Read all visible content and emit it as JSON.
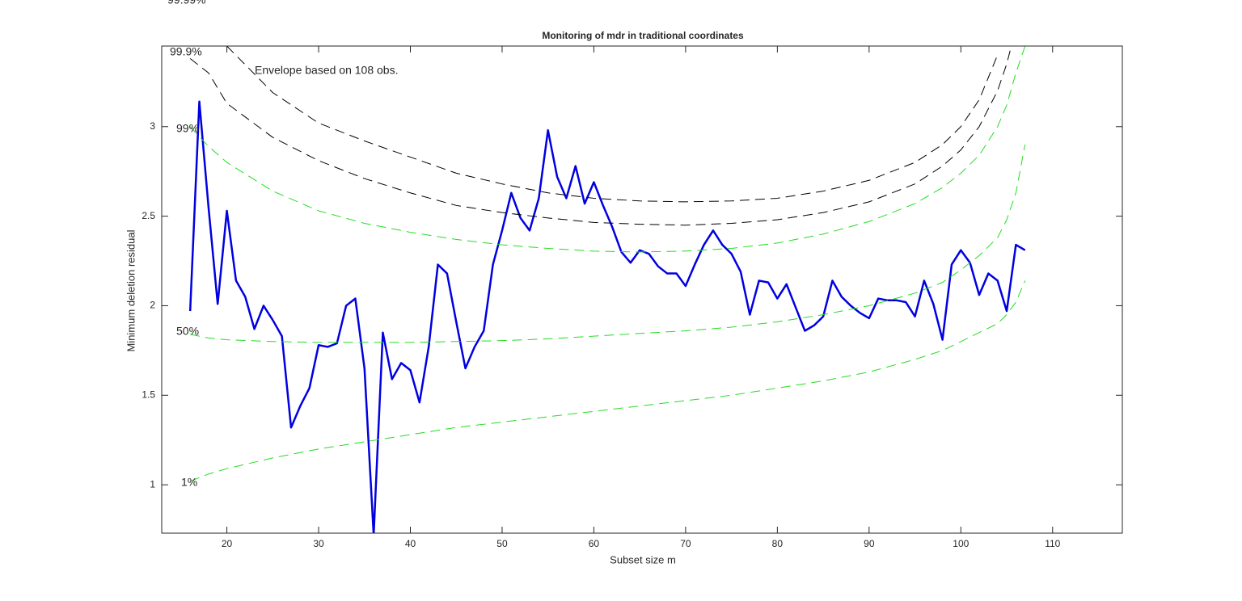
{
  "chart_data": {
    "type": "line",
    "title": "Monitoring of mdr in traditional coordinates",
    "x_label": "Subset size m",
    "y_label": "Minimum deletion residual",
    "annotations": [
      "Envelope based on 108 obs."
    ],
    "xlim": [
      12.9,
      117.6
    ],
    "ylim": [
      0.73,
      3.45
    ],
    "xticks": [
      20,
      30,
      40,
      50,
      60,
      70,
      80,
      90,
      100,
      110
    ],
    "yticks": [
      1,
      1.5,
      2,
      2.5,
      3
    ],
    "series": [
      {
        "color": "#0000e0",
        "dashed": false,
        "x": [
          16,
          17,
          18,
          19,
          20,
          21,
          22,
          23,
          24,
          25,
          26,
          27,
          28,
          29,
          30,
          31,
          32,
          33,
          34,
          35,
          36,
          37,
          38,
          39,
          40,
          41,
          42,
          43,
          44,
          45,
          46,
          47,
          48,
          49,
          50,
          51,
          52,
          53,
          54,
          55,
          56,
          57,
          58,
          59,
          60,
          61,
          62,
          63,
          64,
          65,
          66,
          67,
          68,
          69,
          70,
          71,
          72,
          73,
          74,
          75,
          76,
          77,
          78,
          79,
          80,
          81,
          82,
          83,
          84,
          85,
          86,
          87,
          88,
          89,
          90,
          91,
          92,
          93,
          94,
          95,
          96,
          97,
          98,
          99,
          100,
          101,
          102,
          103,
          104,
          105,
          106,
          107
        ],
        "values": [
          1.97,
          3.14,
          2.55,
          2.01,
          2.53,
          2.14,
          2.05,
          1.87,
          2.0,
          1.92,
          1.83,
          1.32,
          1.44,
          1.54,
          1.78,
          1.77,
          1.79,
          2.0,
          2.04,
          1.65,
          0.72,
          1.85,
          1.59,
          1.68,
          1.64,
          1.46,
          1.77,
          2.23,
          2.18,
          1.91,
          1.65,
          1.77,
          1.86,
          2.23,
          2.42,
          2.63,
          2.49,
          2.42,
          2.6,
          2.98,
          2.72,
          2.6,
          2.78,
          2.57,
          2.69,
          2.56,
          2.44,
          2.3,
          2.24,
          2.31,
          2.29,
          2.22,
          2.18,
          2.18,
          2.11,
          2.23,
          2.34,
          2.42,
          2.34,
          2.29,
          2.19,
          1.95,
          2.14,
          2.13,
          2.04,
          2.12,
          1.99,
          1.86,
          1.89,
          1.94,
          2.14,
          2.05,
          2.0,
          1.96,
          1.93,
          2.04,
          2.03,
          2.03,
          2.02,
          1.94,
          2.14,
          2.01,
          1.81,
          2.23,
          2.31,
          2.24,
          2.06,
          2.18,
          2.14,
          1.97,
          2.34,
          2.31
        ]
      },
      {
        "name": "1%",
        "color": "#22dd22",
        "dashed": true,
        "x": [
          16,
          18,
          20,
          25,
          30,
          35,
          40,
          45,
          50,
          55,
          60,
          65,
          70,
          75,
          80,
          85,
          90,
          95,
          98,
          100,
          102,
          104,
          105,
          106,
          107
        ],
        "values": [
          1.02,
          1.06,
          1.09,
          1.15,
          1.2,
          1.24,
          1.28,
          1.32,
          1.35,
          1.38,
          1.41,
          1.44,
          1.47,
          1.5,
          1.54,
          1.58,
          1.63,
          1.7,
          1.75,
          1.8,
          1.85,
          1.9,
          1.95,
          2.02,
          2.14
        ]
      },
      {
        "name": "50%",
        "color": "#22dd22",
        "dashed": true,
        "x": [
          16,
          18,
          20,
          25,
          30,
          35,
          40,
          45,
          50,
          55,
          60,
          65,
          70,
          75,
          80,
          85,
          90,
          95,
          98,
          100,
          102,
          104,
          105,
          106,
          107
        ],
        "values": [
          1.84,
          1.82,
          1.81,
          1.8,
          1.795,
          1.795,
          1.795,
          1.8,
          1.805,
          1.815,
          1.83,
          1.845,
          1.86,
          1.88,
          1.91,
          1.95,
          2.0,
          2.07,
          2.13,
          2.2,
          2.28,
          2.38,
          2.48,
          2.63,
          2.9
        ]
      },
      {
        "name": "99%",
        "color": "#22dd22",
        "dashed": true,
        "x": [
          16,
          18,
          20,
          25,
          30,
          35,
          40,
          45,
          50,
          55,
          60,
          65,
          70,
          75,
          80,
          85,
          90,
          95,
          98,
          100,
          102,
          104,
          105,
          106,
          107
        ],
        "values": [
          3.0,
          2.89,
          2.8,
          2.64,
          2.53,
          2.46,
          2.41,
          2.37,
          2.34,
          2.32,
          2.305,
          2.3,
          2.305,
          2.32,
          2.35,
          2.4,
          2.47,
          2.57,
          2.66,
          2.74,
          2.84,
          3.0,
          3.12,
          3.3,
          3.45
        ]
      },
      {
        "name": "99.9%",
        "color": "#000000",
        "dashed": true,
        "x": [
          16,
          18,
          20,
          25,
          30,
          35,
          40,
          45,
          50,
          55,
          60,
          65,
          70,
          75,
          80,
          85,
          90,
          95,
          98,
          100,
          102,
          104,
          105,
          106,
          107
        ],
        "values": [
          3.38,
          3.3,
          3.13,
          2.94,
          2.81,
          2.71,
          2.63,
          2.56,
          2.52,
          2.49,
          2.465,
          2.455,
          2.45,
          2.46,
          2.48,
          2.52,
          2.58,
          2.68,
          2.78,
          2.87,
          3.0,
          3.2,
          3.35,
          3.55,
          null
        ]
      },
      {
        "name": "99.99%",
        "color": "#000000",
        "dashed": true,
        "x": [
          16,
          18,
          20,
          25,
          30,
          35,
          40,
          45,
          50,
          55,
          60,
          65,
          70,
          75,
          80,
          85,
          90,
          95,
          98,
          100,
          102,
          104,
          105,
          106,
          107
        ],
        "values": [
          null,
          null,
          3.45,
          3.19,
          3.02,
          2.92,
          2.83,
          2.74,
          2.68,
          2.63,
          2.6,
          2.585,
          2.58,
          2.585,
          2.6,
          2.64,
          2.7,
          2.8,
          2.9,
          3.0,
          3.15,
          3.4,
          null,
          null,
          null
        ]
      }
    ]
  }
}
